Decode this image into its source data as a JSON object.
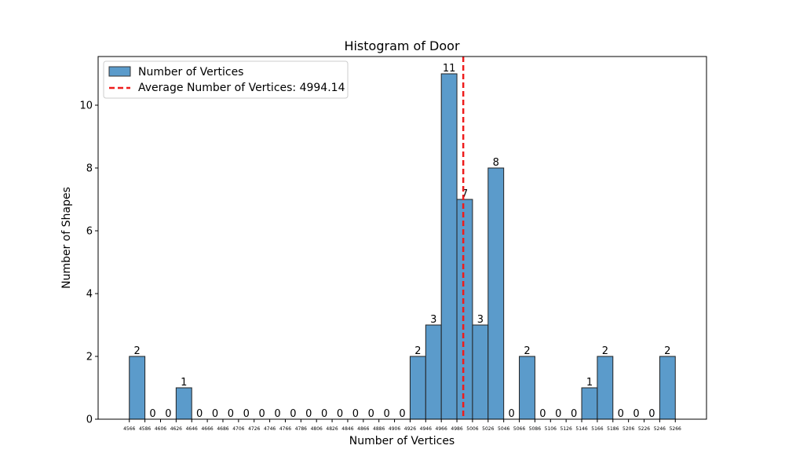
{
  "chart_data": {
    "type": "bar",
    "title": "Histogram of Door",
    "xlabel": "Number of Vertices",
    "ylabel": "Number of Shapes",
    "bin_edges": [
      4566,
      4586,
      4606,
      4626,
      4646,
      4666,
      4686,
      4706,
      4726,
      4746,
      4766,
      4786,
      4806,
      4826,
      4846,
      4866,
      4886,
      4906,
      4926,
      4946,
      4966,
      4986,
      5006,
      5026,
      5046,
      5066,
      5086,
      5106,
      5126,
      5146,
      5166,
      5186,
      5206,
      5226,
      5246,
      5266
    ],
    "values": [
      2,
      0,
      0,
      1,
      0,
      0,
      0,
      0,
      0,
      0,
      0,
      0,
      0,
      0,
      0,
      0,
      0,
      0,
      2,
      3,
      11,
      7,
      3,
      8,
      0,
      2,
      0,
      0,
      0,
      1,
      2,
      0,
      0,
      0,
      2
    ],
    "xlim": [
      4526,
      5306
    ],
    "ylim": [
      0,
      11.55
    ],
    "yticks": [
      0,
      2,
      4,
      6,
      8,
      10
    ],
    "average": 4994.14,
    "series": [
      {
        "name": "Number of Vertices",
        "color": "#5b9bcb"
      },
      {
        "name": "Average Number of Vertices: 4994.14",
        "color": "#ee1c1c"
      }
    ],
    "legend_position": "upper-left",
    "grid": false
  }
}
